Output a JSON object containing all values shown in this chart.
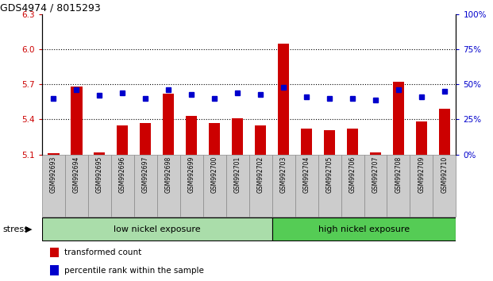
{
  "title": "GDS4974 / 8015293",
  "samples": [
    "GSM992693",
    "GSM992694",
    "GSM992695",
    "GSM992696",
    "GSM992697",
    "GSM992698",
    "GSM992699",
    "GSM992700",
    "GSM992701",
    "GSM992702",
    "GSM992703",
    "GSM992704",
    "GSM992705",
    "GSM992706",
    "GSM992707",
    "GSM992708",
    "GSM992709",
    "GSM992710"
  ],
  "transformed_count": [
    5.11,
    5.68,
    5.12,
    5.35,
    5.37,
    5.62,
    5.43,
    5.37,
    5.41,
    5.35,
    6.05,
    5.32,
    5.31,
    5.32,
    5.12,
    5.72,
    5.38,
    5.49
  ],
  "percentile_rank": [
    40,
    46,
    42,
    44,
    40,
    46,
    43,
    40,
    44,
    43,
    48,
    41,
    40,
    40,
    39,
    46,
    41,
    45
  ],
  "ylim_left": [
    5.1,
    6.3
  ],
  "ylim_right": [
    0,
    100
  ],
  "yticks_left": [
    5.1,
    5.4,
    5.7,
    6.0,
    6.3
  ],
  "yticks_right": [
    0,
    25,
    50,
    75,
    100
  ],
  "ytick_labels_right": [
    "0%",
    "25%",
    "50%",
    "75%",
    "100%"
  ],
  "bar_color": "#cc0000",
  "dot_color": "#0000cc",
  "bar_bottom": 5.1,
  "group1_label": "low nickel exposure",
  "group2_label": "high nickel exposure",
  "group1_count": 10,
  "group2_count": 8,
  "group_label_left": "stress",
  "legend_bar": "transformed count",
  "legend_dot": "percentile rank within the sample",
  "grid_yticks": [
    5.4,
    5.7,
    6.0
  ],
  "bg_color": "#ffffff",
  "group1_bg": "#aaddaa",
  "group2_bg": "#55cc55",
  "tick_area_bg": "#cccccc"
}
